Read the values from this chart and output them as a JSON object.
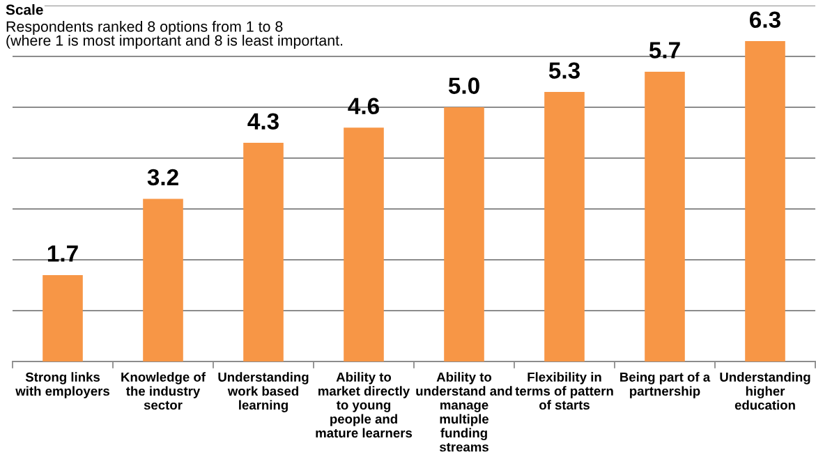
{
  "chart_data": {
    "type": "bar",
    "title": "Scale",
    "subtitle": "Respondents ranked 8 options from 1 to 8\n(where 1 is most important and 8 is least important.",
    "categories": [
      "Strong links\nwith employers",
      "Knowledge of\nthe industry\nsector",
      "Understanding\nwork based\nlearning",
      "Ability to\nmarket directly\nto young\npeople and\nmature learners",
      "Ability to\nunderstand and\nmanage\nmultiple\nfunding\nstreams",
      "Flexibility in\nterms of pattern\nof starts",
      "Being part of a\npartnership",
      "Understanding\nhigher\neducation"
    ],
    "values": [
      1.7,
      3.2,
      4.3,
      4.6,
      5.0,
      5.3,
      5.7,
      6.3
    ],
    "value_labels": [
      "1.7",
      "3.2",
      "4.3",
      "4.6",
      "5.0",
      "5.3",
      "5.7",
      "6.3"
    ],
    "color": "#f79646",
    "ylim": [
      0,
      7
    ],
    "yticks": [
      {
        "value": 0,
        "label": null
      },
      {
        "value": 1,
        "label": null
      },
      {
        "value": 2,
        "label": null
      },
      {
        "value": 3,
        "label": null
      },
      {
        "value": 4,
        "label": null
      },
      {
        "value": 5,
        "label": null
      },
      {
        "value": 6,
        "label": null
      },
      {
        "value": 7,
        "label": null
      }
    ],
    "grid": "y",
    "tick_labels": "x"
  }
}
